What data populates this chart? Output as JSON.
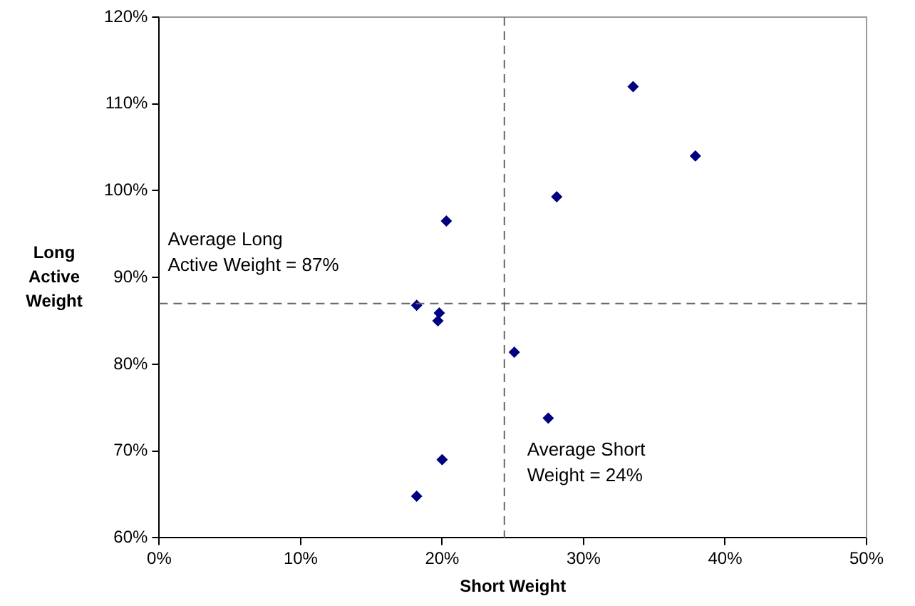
{
  "chart_data": {
    "type": "scatter",
    "xlabel": "Short Weight",
    "ylabel": "Long\nActive\nWeight",
    "series": [
      {
        "color": "#000080",
        "x": [
          33.5,
          37.9,
          28.1,
          20.3,
          18.2,
          19.8,
          19.7,
          25.1,
          27.5,
          20.0,
          18.2
        ],
        "values": [
          112,
          104,
          99.3,
          96.5,
          86.8,
          85.9,
          85.0,
          81.4,
          73.8,
          69.0,
          64.8
        ]
      }
    ],
    "xlim": [
      0,
      50
    ],
    "xticks": [
      {
        "value": 0,
        "label": "0%"
      },
      {
        "value": 10,
        "label": "10%"
      },
      {
        "value": 20,
        "label": "20%"
      },
      {
        "value": 30,
        "label": "30%"
      },
      {
        "value": 40,
        "label": "40%"
      },
      {
        "value": 50,
        "label": "50%"
      }
    ],
    "ylim": [
      60,
      120
    ],
    "yticks": [
      {
        "value": 60,
        "label": "60%"
      },
      {
        "value": 70,
        "label": "70%"
      },
      {
        "value": 80,
        "label": "80%"
      },
      {
        "value": 90,
        "label": "90%"
      },
      {
        "value": 100,
        "label": "100%"
      },
      {
        "value": 110,
        "label": "110%"
      },
      {
        "value": 120,
        "label": "120%"
      }
    ],
    "ref_lines": [
      {
        "axis": "y",
        "value": 87,
        "label": "Average Long\nActive Weight = 87%",
        "color": "#666666",
        "line_style": "dashed"
      },
      {
        "axis": "x",
        "value": 24.4,
        "label": "Average Short\nWeight = 24%",
        "color": "#666666",
        "line_style": "dashed"
      }
    ],
    "marker": "diamond",
    "grid": false,
    "legend": false
  }
}
